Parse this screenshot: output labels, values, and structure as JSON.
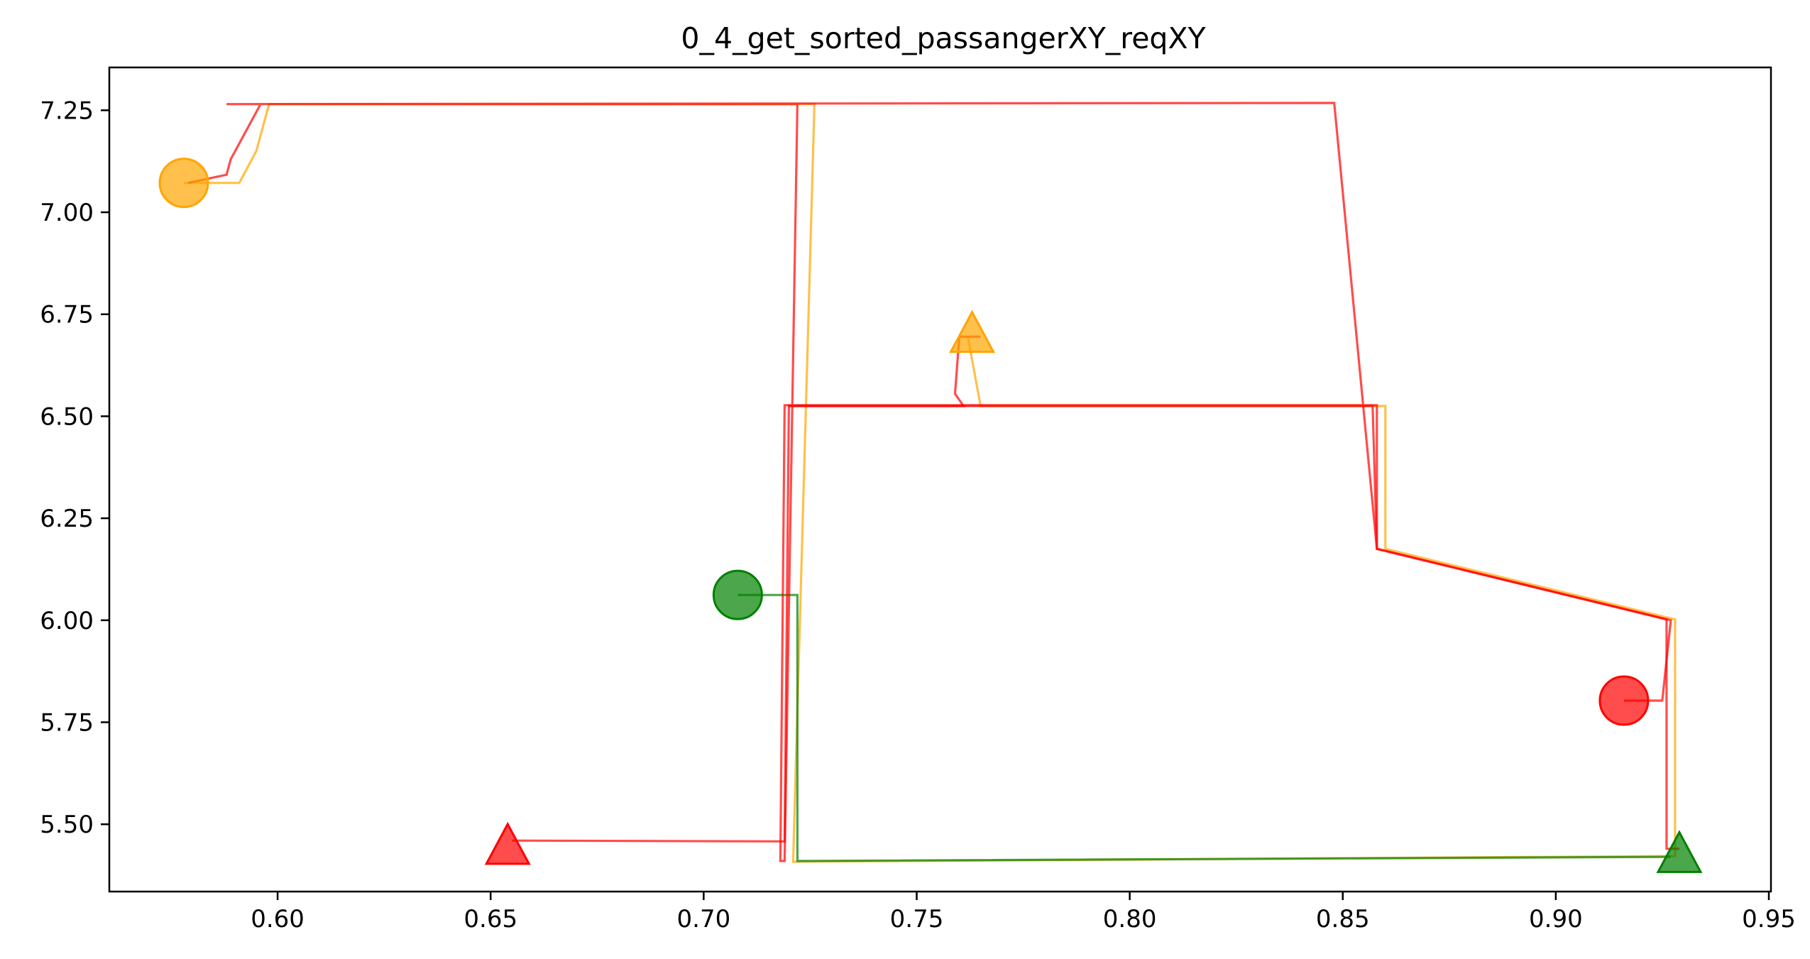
{
  "chart_data": {
    "type": "line",
    "title": "0_4_get_sorted_passangerXY_reqXY",
    "xlabel": "",
    "ylabel": "",
    "xlim": [
      0.5605,
      0.9505
    ],
    "ylim": [
      5.335,
      7.355
    ],
    "xticks": [
      "0.60",
      "0.65",
      "0.70",
      "0.75",
      "0.80",
      "0.85",
      "0.90",
      "0.95"
    ],
    "yticks": [
      "5.50",
      "5.75",
      "6.00",
      "6.25",
      "6.50",
      "6.75",
      "7.00",
      "7.25"
    ],
    "grid": false,
    "legend": "none",
    "series": [
      {
        "color": "#ffa500",
        "start_marker": {
          "shape": "circle",
          "x": 0.578,
          "y": 7.072
        },
        "end_marker": {
          "shape": "triangle",
          "x": 0.763,
          "y": 6.695
        },
        "path": [
          [
            0.578,
            7.072
          ],
          [
            0.591,
            7.072
          ],
          [
            0.595,
            7.15
          ],
          [
            0.598,
            7.265
          ],
          [
            0.726,
            7.265
          ],
          [
            0.721,
            5.408
          ],
          [
            0.928,
            5.422
          ],
          [
            0.928,
            6.002
          ],
          [
            0.86,
            6.175
          ],
          [
            0.86,
            6.525
          ],
          [
            0.765,
            6.525
          ],
          [
            0.762,
            6.695
          ]
        ]
      },
      {
        "color": "#008000",
        "start_marker": {
          "shape": "circle",
          "x": 0.708,
          "y": 6.062
        },
        "end_marker": {
          "shape": "triangle",
          "x": 0.929,
          "y": 5.42
        },
        "path": [
          [
            0.708,
            6.062
          ],
          [
            0.722,
            6.062
          ],
          [
            0.722,
            5.41
          ],
          [
            0.927,
            5.42
          ]
        ]
      },
      {
        "color": "#ff0000",
        "start_marker": {
          "shape": "circle",
          "x": 0.916,
          "y": 5.803
        },
        "end_marker": {
          "shape": "triangle",
          "x": 0.654,
          "y": 5.44
        },
        "path": [
          [
            0.579,
            7.072
          ],
          [
            0.588,
            7.092
          ],
          [
            0.589,
            7.13
          ],
          [
            0.596,
            7.265
          ],
          [
            0.588,
            7.265
          ],
          [
            0.848,
            7.268
          ],
          [
            0.858,
            6.175
          ],
          [
            0.926,
            6.002
          ],
          [
            0.926,
            5.44
          ],
          [
            0.929,
            5.44
          ],
          [
            0.926,
            5.44
          ],
          [
            0.926,
            6.002
          ],
          [
            0.858,
            6.175
          ],
          [
            0.858,
            6.527
          ],
          [
            0.719,
            6.527
          ],
          [
            0.718,
            5.41
          ],
          [
            0.719,
            5.41
          ],
          [
            0.722,
            7.265
          ],
          [
            0.588,
            7.265
          ]
        ]
      },
      {
        "color": "#ff0000",
        "start_marker": null,
        "end_marker": null,
        "path": [
          [
            0.916,
            5.803
          ],
          [
            0.925,
            5.803
          ],
          [
            0.927,
            6.0
          ],
          [
            0.858,
            6.175
          ],
          [
            0.857,
            6.525
          ],
          [
            0.72,
            6.525
          ],
          [
            0.719,
            5.458
          ],
          [
            0.655,
            5.46
          ]
        ]
      },
      {
        "color": "#ff0000",
        "start_marker": null,
        "end_marker": null,
        "path": [
          [
            0.72,
            6.525
          ],
          [
            0.761,
            6.525
          ],
          [
            0.759,
            6.555
          ],
          [
            0.76,
            6.695
          ],
          [
            0.765,
            6.695
          ]
        ]
      }
    ]
  }
}
